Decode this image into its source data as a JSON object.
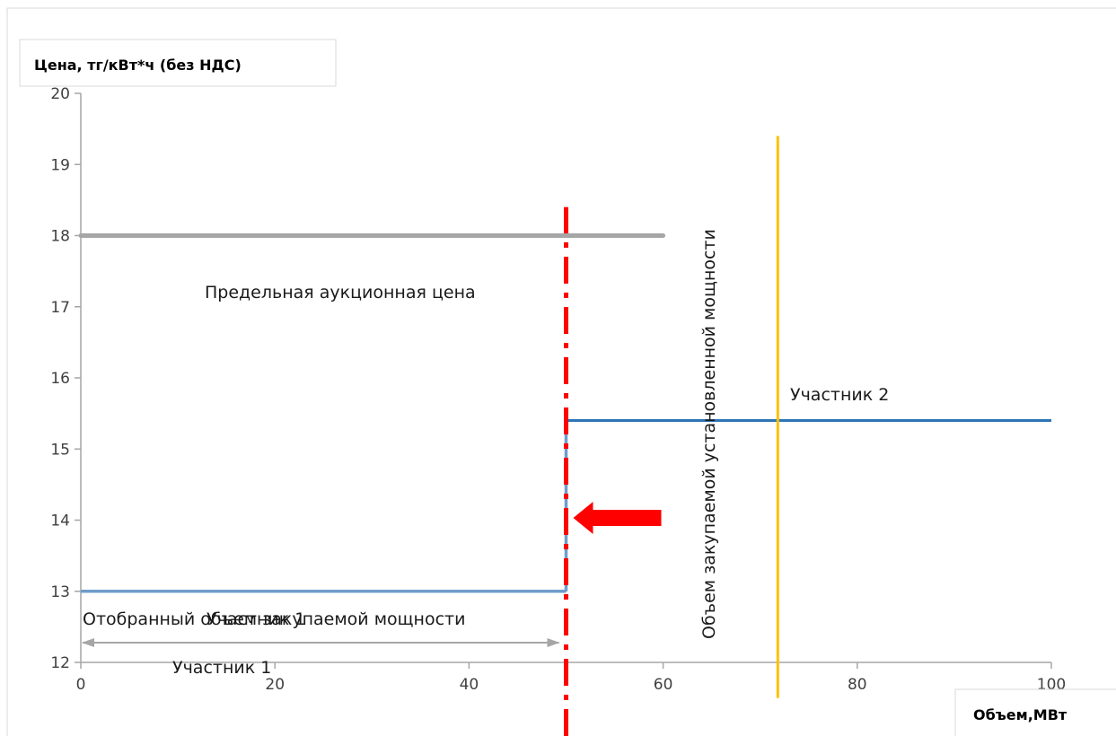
{
  "chart_data": {
    "type": "line",
    "ylabel": "Цена, тг/кВт*ч (без НДС)",
    "xlabel": "Объем,МВт",
    "xlim": [
      0,
      100
    ],
    "ylim": [
      12,
      20
    ],
    "x_ticks": [
      "0",
      "20",
      "40",
      "60",
      "80",
      "100"
    ],
    "y_ticks": [
      "12",
      "13",
      "14",
      "15",
      "16",
      "17",
      "18",
      "19",
      "20"
    ],
    "grid": false,
    "series": [
      {
        "name": "Участник 1",
        "x": [
          0,
          50
        ],
        "y": [
          13,
          13
        ],
        "color": "#6f9ccb"
      },
      {
        "name": "Участник 2",
        "x": [
          50,
          50,
          100
        ],
        "y": [
          13,
          15.4,
          15.4
        ],
        "color": "#2e75b6"
      },
      {
        "name": "Предельная аукционная цена",
        "x": [
          0,
          60
        ],
        "y": [
          18,
          18
        ],
        "color": "#a6a6a6"
      },
      {
        "name": "Отобранный объем закупаемой мощности",
        "x": [
          50,
          50
        ],
        "y": [
          11.5,
          18.4
        ],
        "color": "#ff0000",
        "style": "dash-dot"
      },
      {
        "name": "Объем закупаемой установленной мощности",
        "x": [
          72,
          72
        ],
        "y": [
          11.5,
          19.4
        ],
        "color": "#ffc000"
      }
    ],
    "annotations": [
      {
        "key": "price_limit",
        "text": "Предельная аукционная цена"
      },
      {
        "key": "participant2",
        "text": "Участник 2"
      },
      {
        "key": "selected_volume",
        "text": "Отобранный объем закупаемой мощности"
      },
      {
        "key": "participant1_overlap",
        "text": "Участник 1"
      },
      {
        "key": "participant1",
        "text": "Участник 1"
      },
      {
        "key": "installed_volume",
        "text": "Объем закупаемой установленной мощности"
      }
    ],
    "arrow_color": "#ff0000"
  }
}
